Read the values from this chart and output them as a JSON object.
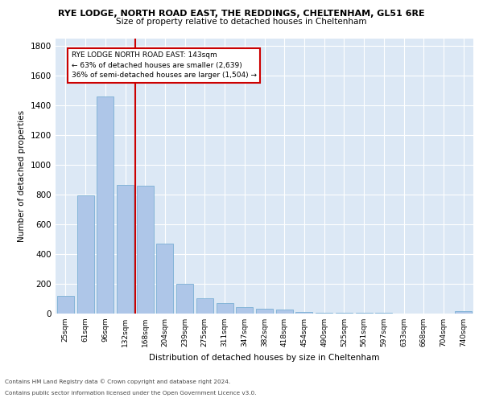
{
  "title": "RYE LODGE, NORTH ROAD EAST, THE REDDINGS, CHELTENHAM, GL51 6RE",
  "subtitle": "Size of property relative to detached houses in Cheltenham",
  "xlabel": "Distribution of detached houses by size in Cheltenham",
  "ylabel": "Number of detached properties",
  "categories": [
    "25sqm",
    "61sqm",
    "96sqm",
    "132sqm",
    "168sqm",
    "204sqm",
    "239sqm",
    "275sqm",
    "311sqm",
    "347sqm",
    "382sqm",
    "418sqm",
    "454sqm",
    "490sqm",
    "525sqm",
    "561sqm",
    "597sqm",
    "633sqm",
    "668sqm",
    "704sqm",
    "740sqm"
  ],
  "values": [
    120,
    795,
    1460,
    865,
    860,
    470,
    200,
    105,
    68,
    45,
    30,
    25,
    12,
    8,
    5,
    4,
    3,
    0,
    0,
    0,
    18
  ],
  "bar_color": "#aec6e8",
  "bar_edge_color": "#7aafd4",
  "marker_label": "RYE LODGE NORTH ROAD EAST: 143sqm",
  "marker_line1": "← 63% of detached houses are smaller (2,639)",
  "marker_line2": "36% of semi-detached houses are larger (1,504) →",
  "annotation_box_color": "#ffffff",
  "annotation_border_color": "#cc0000",
  "vline_color": "#cc0000",
  "vline_x": 3.5,
  "ylim": [
    0,
    1850
  ],
  "yticks": [
    0,
    200,
    400,
    600,
    800,
    1000,
    1200,
    1400,
    1600,
    1800
  ],
  "background_color": "#dce8f5",
  "footer_line1": "Contains HM Land Registry data © Crown copyright and database right 2024.",
  "footer_line2": "Contains public sector information licensed under the Open Government Licence v3.0."
}
